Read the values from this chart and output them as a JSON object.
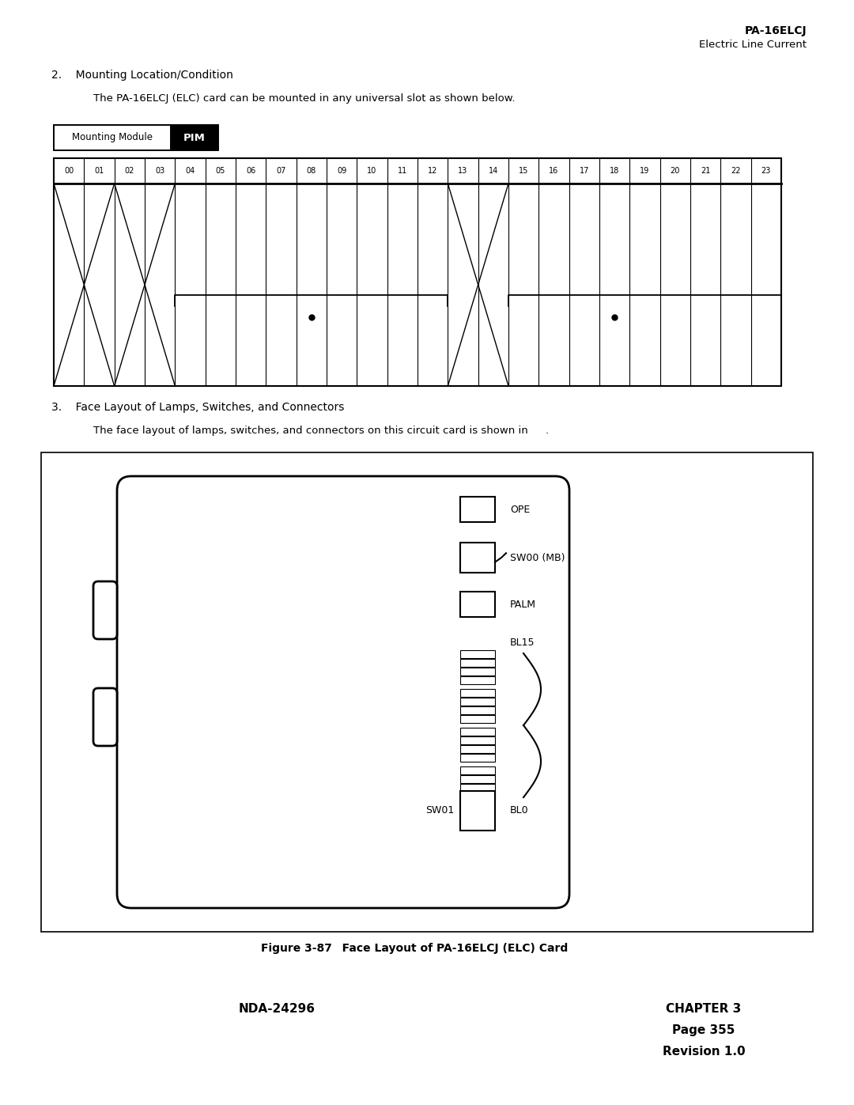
{
  "page_title_line1": "PA-16ELCJ",
  "page_title_line2": "Electric Line Current",
  "section2_heading": "2.    Mounting Location/Condition",
  "section2_body": "The PA-16ELCJ (ELC) card can be mounted in any universal slot as shown below.",
  "mounting_module_label": "Mounting Module",
  "pim_label": "PIM",
  "slot_labels": [
    "00",
    "01",
    "02",
    "03",
    "04",
    "05",
    "06",
    "07",
    "08",
    "09",
    "10",
    "11",
    "12",
    "13",
    "14",
    "15",
    "16",
    "17",
    "18",
    "19",
    "20",
    "21",
    "22",
    "23"
  ],
  "section3_heading": "3.    Face Layout of Lamps, Switches, and Connectors",
  "section3_body": "The face layout of lamps, switches, and connectors on this circuit card is shown in",
  "section3_body_end": ".",
  "card_labels": {
    "OPE": "OPE",
    "SW00": "SW00 (MB)",
    "PALM": "PALM",
    "BL15": "BL15",
    "BL0": "BL0",
    "SW01": "SW01"
  },
  "figure_caption_bold": "Figure 3-87",
  "figure_caption_rest": "   Face Layout of PA-16ELCJ (ELC) Card",
  "footer_left": "NDA-24296",
  "footer_right_line1": "CHAPTER 3",
  "footer_right_line2": "Page 355",
  "footer_right_line3": "Revision 1.0",
  "bg_color": "#ffffff",
  "text_color": "#000000",
  "border_color": "#000000"
}
